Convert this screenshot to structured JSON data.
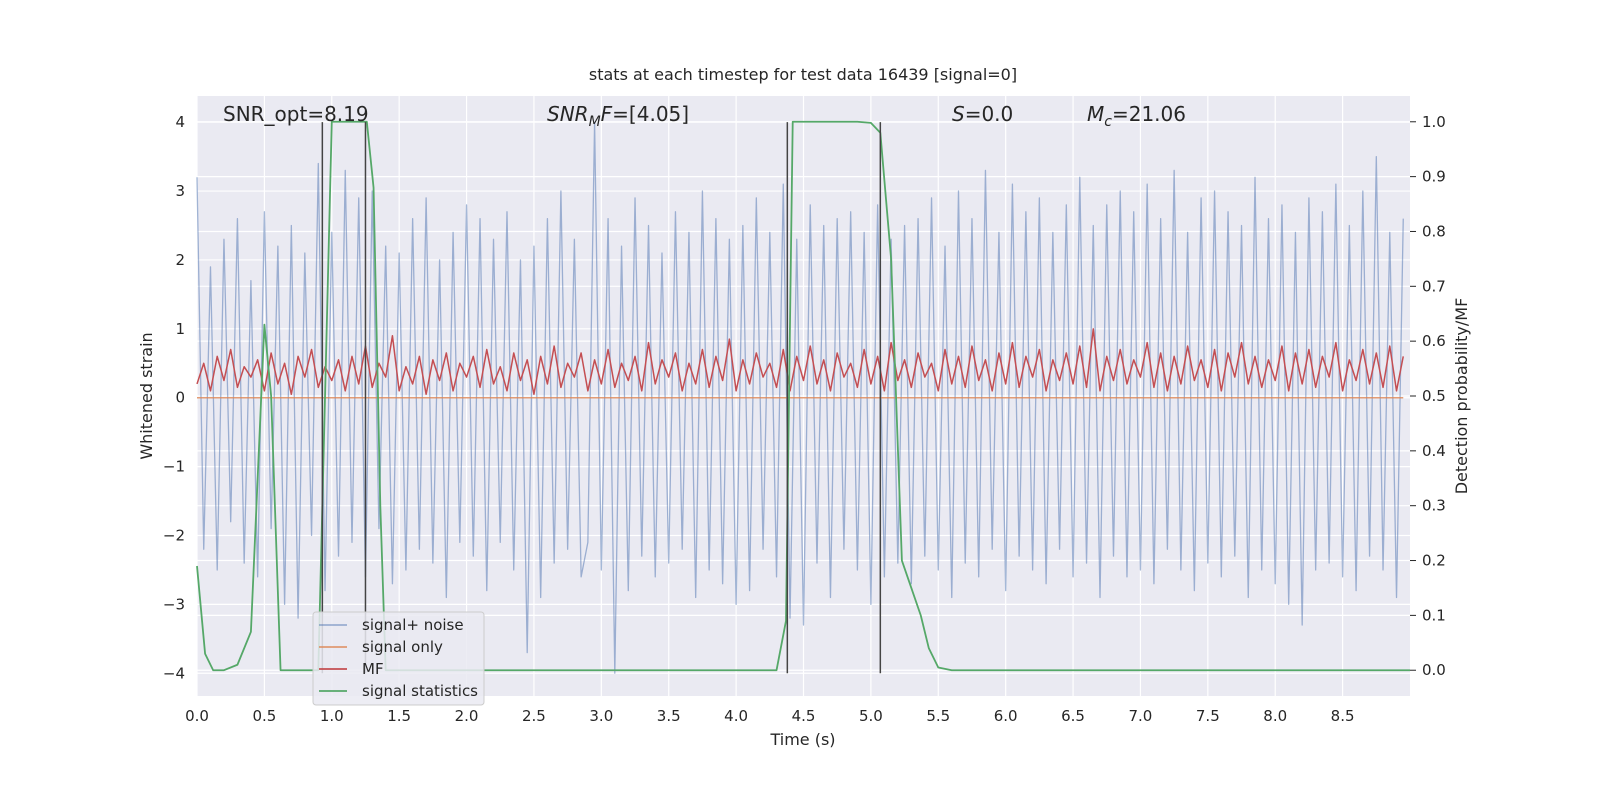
{
  "chart_data": {
    "type": "line",
    "title": "stats at each timestep for test data 16439 [signal=0]",
    "xlabel": "Time (s)",
    "ylabel": "Whitened strain",
    "y2label": "Detection probability/MF",
    "xlim": [
      0,
      9.0
    ],
    "ylim": [
      -4.33,
      4.38
    ],
    "y2lim": [
      -0.047,
      1.047
    ],
    "xticks": [
      {
        "value": 0,
        "label": "0.0"
      },
      0.5,
      {
        "value": 1,
        "label": "1.0"
      },
      1.5,
      {
        "value": 2,
        "label": "2.0"
      },
      2.5,
      {
        "value": 3,
        "label": "3.0"
      },
      3.5,
      {
        "value": 4,
        "label": "4.0"
      },
      4.5,
      {
        "value": 5,
        "label": "5.0"
      },
      5.5,
      {
        "value": 6,
        "label": "6.0"
      },
      6.5,
      {
        "value": 7,
        "label": "7.0"
      },
      7.5,
      {
        "value": 8,
        "label": "8.0"
      },
      8.5
    ],
    "yticks": [
      {
        "value": -4,
        "label": "−4"
      },
      {
        "value": -3,
        "label": "−3"
      },
      {
        "value": -2,
        "label": "−2"
      },
      {
        "value": -1,
        "label": "−1"
      },
      0,
      1,
      2,
      3,
      4
    ],
    "y2ticks": [
      {
        "value": 0,
        "label": "0.0"
      },
      0.1,
      0.2,
      0.3,
      0.4,
      0.5,
      0.6,
      0.7,
      0.8,
      0.9,
      {
        "value": 1,
        "label": "1.0"
      }
    ],
    "grid": true,
    "legend": "lower left",
    "series": [
      {
        "name": "signal+ noise",
        "color": "#4c72b0",
        "axis": "y",
        "x": [
          0.0,
          0.05,
          0.1,
          0.15,
          0.2,
          0.25,
          0.3,
          0.35,
          0.4,
          0.45,
          0.5,
          0.55,
          0.6,
          0.65,
          0.7,
          0.75,
          0.8,
          0.85,
          0.9,
          0.95,
          1.0,
          1.05,
          1.1,
          1.15,
          1.2,
          1.25,
          1.3,
          1.35,
          1.4,
          1.45,
          1.5,
          1.55,
          1.6,
          1.65,
          1.7,
          1.75,
          1.8,
          1.85,
          1.9,
          1.95,
          2.0,
          2.05,
          2.1,
          2.15,
          2.2,
          2.25,
          2.3,
          2.35,
          2.4,
          2.45,
          2.5,
          2.55,
          2.6,
          2.65,
          2.7,
          2.75,
          2.8,
          2.85,
          2.9,
          2.95,
          3.0,
          3.05,
          3.1,
          3.15,
          3.2,
          3.25,
          3.3,
          3.35,
          3.4,
          3.45,
          3.5,
          3.55,
          3.6,
          3.65,
          3.7,
          3.75,
          3.8,
          3.85,
          3.9,
          3.95,
          4.0,
          4.05,
          4.1,
          4.15,
          4.2,
          4.25,
          4.3,
          4.35,
          4.4,
          4.45,
          4.5,
          4.55,
          4.6,
          4.65,
          4.7,
          4.75,
          4.8,
          4.85,
          4.9,
          4.95,
          5.0,
          5.05,
          5.1,
          5.15,
          5.2,
          5.25,
          5.3,
          5.35,
          5.4,
          5.45,
          5.5,
          5.55,
          5.6,
          5.65,
          5.7,
          5.75,
          5.8,
          5.85,
          5.9,
          5.95,
          6.0,
          6.05,
          6.1,
          6.15,
          6.2,
          6.25,
          6.3,
          6.35,
          6.4,
          6.45,
          6.5,
          6.55,
          6.6,
          6.65,
          6.7,
          6.75,
          6.8,
          6.85,
          6.9,
          6.95,
          7.0,
          7.05,
          7.1,
          7.15,
          7.2,
          7.25,
          7.3,
          7.35,
          7.4,
          7.45,
          7.5,
          7.55,
          7.6,
          7.65,
          7.7,
          7.75,
          7.8,
          7.85,
          7.9,
          7.95,
          8.0,
          8.05,
          8.1,
          8.15,
          8.2,
          8.25,
          8.3,
          8.35,
          8.4,
          8.45,
          8.5,
          8.55,
          8.6,
          8.65,
          8.7,
          8.75,
          8.8,
          8.85,
          8.9,
          8.95
        ],
        "values": [
          3.2,
          -2.2,
          1.9,
          -2.5,
          2.3,
          -1.8,
          2.6,
          -2.4,
          1.7,
          -2.6,
          2.7,
          -1.9,
          2.2,
          -3.0,
          2.5,
          -3.2,
          2.1,
          -2.0,
          3.4,
          -2.8,
          2.4,
          -2.3,
          3.3,
          -2.1,
          2.9,
          -2.6,
          3.0,
          -1.9,
          2.2,
          -2.7,
          2.1,
          -2.5,
          2.6,
          -2.2,
          2.9,
          -2.4,
          2.0,
          -2.9,
          2.4,
          -2.1,
          2.8,
          -2.3,
          2.6,
          -2.8,
          2.3,
          -2.1,
          2.7,
          -2.5,
          2.0,
          -3.7,
          2.2,
          -2.9,
          2.6,
          -2.4,
          3.0,
          -2.2,
          2.3,
          -2.6,
          -2.1,
          4.0,
          -2.5,
          2.6,
          -4.0,
          2.2,
          -2.8,
          2.9,
          -2.3,
          2.5,
          -2.6,
          2.1,
          -2.4,
          2.7,
          -2.2,
          2.4,
          -2.9,
          3.0,
          -2.5,
          2.6,
          -2.7,
          2.3,
          -3.0,
          2.5,
          -2.8,
          2.9,
          -2.2,
          2.4,
          -2.6,
          3.1,
          -3.2,
          2.3,
          -3.3,
          2.8,
          -2.4,
          2.5,
          -2.9,
          2.6,
          -2.2,
          2.7,
          -2.5,
          2.4,
          -3.0,
          2.8,
          -2.6,
          2.3,
          -2.4,
          2.5,
          -2.7,
          2.6,
          -2.3,
          2.9,
          -2.5,
          2.2,
          -2.9,
          3.0,
          -2.4,
          2.6,
          -2.6,
          3.3,
          -2.2,
          2.4,
          -2.8,
          3.1,
          -2.3,
          2.7,
          -2.5,
          2.9,
          -2.7,
          2.4,
          -2.2,
          2.8,
          -2.6,
          3.2,
          -2.4,
          2.5,
          -2.9,
          2.8,
          -2.3,
          3.0,
          -2.6,
          2.7,
          -2.5,
          3.1,
          -2.7,
          2.6,
          -2.2,
          3.3,
          -2.5,
          2.4,
          -2.8,
          2.9,
          -2.4,
          3.0,
          -2.6,
          2.7,
          -2.3,
          2.5,
          -2.9,
          3.2,
          -2.5,
          2.6,
          -2.7,
          2.8,
          -3.0,
          2.4,
          -3.3,
          2.9,
          -2.5,
          2.7,
          -2.4,
          3.1,
          -2.6,
          2.5,
          -2.8,
          3.0,
          -2.3,
          3.5,
          -2.5,
          2.4,
          -2.9,
          2.6
        ]
      },
      {
        "name": "signal only",
        "color": "#dd8452",
        "axis": "y",
        "x": [
          0.0,
          8.95
        ],
        "values": [
          0,
          0
        ]
      },
      {
        "name": "MF",
        "color": "#c44e52",
        "axis": "y",
        "x": [
          0.0,
          0.05,
          0.1,
          0.15,
          0.2,
          0.25,
          0.3,
          0.35,
          0.4,
          0.45,
          0.5,
          0.55,
          0.6,
          0.65,
          0.7,
          0.75,
          0.8,
          0.85,
          0.9,
          0.95,
          1.0,
          1.05,
          1.1,
          1.15,
          1.2,
          1.25,
          1.3,
          1.35,
          1.4,
          1.45,
          1.5,
          1.55,
          1.6,
          1.65,
          1.7,
          1.75,
          1.8,
          1.85,
          1.9,
          1.95,
          2.0,
          2.05,
          2.1,
          2.15,
          2.2,
          2.25,
          2.3,
          2.35,
          2.4,
          2.45,
          2.5,
          2.55,
          2.6,
          2.65,
          2.7,
          2.75,
          2.8,
          2.85,
          2.9,
          2.95,
          3.0,
          3.05,
          3.1,
          3.15,
          3.2,
          3.25,
          3.3,
          3.35,
          3.4,
          3.45,
          3.5,
          3.55,
          3.6,
          3.65,
          3.7,
          3.75,
          3.8,
          3.85,
          3.9,
          3.95,
          4.0,
          4.05,
          4.1,
          4.15,
          4.2,
          4.25,
          4.3,
          4.35,
          4.4,
          4.45,
          4.5,
          4.55,
          4.6,
          4.65,
          4.7,
          4.75,
          4.8,
          4.85,
          4.9,
          4.95,
          5.0,
          5.05,
          5.1,
          5.15,
          5.2,
          5.25,
          5.3,
          5.35,
          5.4,
          5.45,
          5.5,
          5.55,
          5.6,
          5.65,
          5.7,
          5.75,
          5.8,
          5.85,
          5.9,
          5.95,
          6.0,
          6.05,
          6.1,
          6.15,
          6.2,
          6.25,
          6.3,
          6.35,
          6.4,
          6.45,
          6.5,
          6.55,
          6.6,
          6.65,
          6.7,
          6.75,
          6.8,
          6.85,
          6.9,
          6.95,
          7.0,
          7.05,
          7.1,
          7.15,
          7.2,
          7.25,
          7.3,
          7.35,
          7.4,
          7.45,
          7.5,
          7.55,
          7.6,
          7.65,
          7.7,
          7.75,
          7.8,
          7.85,
          7.9,
          7.95,
          8.0,
          8.05,
          8.1,
          8.15,
          8.2,
          8.25,
          8.3,
          8.35,
          8.4,
          8.45,
          8.5,
          8.55,
          8.6,
          8.65,
          8.7,
          8.75,
          8.8,
          8.85,
          8.9,
          8.95
        ],
        "values": [
          0.2,
          0.5,
          0.1,
          0.6,
          0.25,
          0.7,
          0.15,
          0.45,
          0.3,
          0.55,
          0.1,
          0.65,
          0.2,
          0.5,
          0.05,
          0.6,
          0.3,
          0.7,
          0.15,
          0.45,
          0.25,
          0.55,
          0.1,
          0.6,
          0.2,
          0.75,
          0.15,
          0.5,
          0.3,
          0.9,
          0.1,
          0.45,
          0.2,
          0.6,
          0.05,
          0.55,
          0.25,
          0.65,
          0.1,
          0.5,
          0.3,
          0.6,
          0.15,
          0.7,
          0.2,
          0.45,
          0.1,
          0.65,
          0.25,
          0.55,
          0.05,
          0.6,
          0.2,
          0.75,
          0.15,
          0.5,
          0.3,
          0.65,
          0.1,
          0.55,
          0.2,
          0.7,
          0.15,
          0.5,
          0.25,
          0.6,
          0.1,
          0.8,
          0.2,
          0.55,
          0.3,
          0.65,
          0.1,
          0.5,
          0.2,
          0.7,
          0.15,
          0.6,
          0.25,
          0.85,
          0.1,
          0.55,
          0.2,
          0.65,
          0.3,
          0.5,
          0.15,
          0.7,
          0.1,
          0.6,
          0.25,
          0.75,
          0.2,
          0.55,
          0.1,
          0.65,
          0.3,
          0.5,
          0.15,
          0.7,
          0.2,
          0.6,
          0.1,
          0.8,
          0.25,
          0.55,
          0.15,
          0.65,
          0.3,
          0.5,
          0.1,
          0.7,
          0.2,
          0.6,
          0.15,
          0.75,
          0.25,
          0.55,
          0.1,
          0.65,
          0.2,
          0.8,
          0.15,
          0.6,
          0.3,
          0.7,
          0.1,
          0.55,
          0.25,
          0.65,
          0.2,
          0.75,
          0.15,
          1.0,
          0.1,
          0.6,
          0.25,
          0.7,
          0.2,
          0.55,
          0.3,
          0.8,
          0.15,
          0.65,
          0.1,
          0.6,
          0.2,
          0.75,
          0.25,
          0.55,
          0.15,
          0.7,
          0.1,
          0.65,
          0.3,
          0.8,
          0.2,
          0.6,
          0.15,
          0.55,
          0.25,
          0.75,
          0.1,
          0.65,
          0.2,
          0.7,
          0.15,
          0.6,
          0.3,
          0.8,
          0.1,
          0.55,
          0.25,
          0.7,
          0.2,
          0.65,
          0.15,
          0.75,
          0.1,
          0.6
        ]
      },
      {
        "name": "signal statistics",
        "color": "#55a868",
        "axis": "y2",
        "x": [
          0.0,
          0.06,
          0.12,
          0.2,
          0.3,
          0.4,
          0.5,
          0.55,
          0.62,
          0.7,
          0.9,
          0.95,
          1.0,
          1.2,
          1.26,
          1.31,
          1.36,
          1.4,
          4.3,
          4.37,
          4.42,
          4.9,
          5.0,
          5.07,
          5.15,
          5.23,
          5.3,
          5.37,
          5.43,
          5.5,
          5.6,
          9.0
        ],
        "values": [
          0.19,
          0.03,
          0.0,
          0.0,
          0.01,
          0.07,
          0.63,
          0.5,
          0.0,
          0.0,
          0.0,
          0.5,
          1.0,
          1.0,
          1.0,
          0.88,
          0.3,
          0.0,
          0.0,
          0.09,
          1.0,
          1.0,
          0.998,
          0.98,
          0.75,
          0.2,
          0.15,
          0.1,
          0.04,
          0.005,
          0.0,
          0.0
        ]
      }
    ],
    "vlines": {
      "x": [
        0.93,
        1.25,
        4.38,
        5.07
      ],
      "ymin": -4,
      "ymax": 4,
      "color": "#444444"
    },
    "annotations": [
      [
        {
          "text": "SNR_opt=8.19"
        }
      ],
      [
        {
          "text": "SNR",
          "style": "italic"
        },
        {
          "text": "M",
          "style": "italic-sub"
        },
        {
          "text": "F",
          "style": "italic"
        },
        {
          "text": "=[4.05]"
        }
      ],
      [
        {
          "text": "S",
          "style": "italic"
        },
        {
          "text": "=0.0"
        }
      ],
      [
        {
          "text": "M",
          "style": "italic"
        },
        {
          "text": "c",
          "style": "italic-sub"
        },
        {
          "text": "=21.06"
        }
      ]
    ]
  }
}
